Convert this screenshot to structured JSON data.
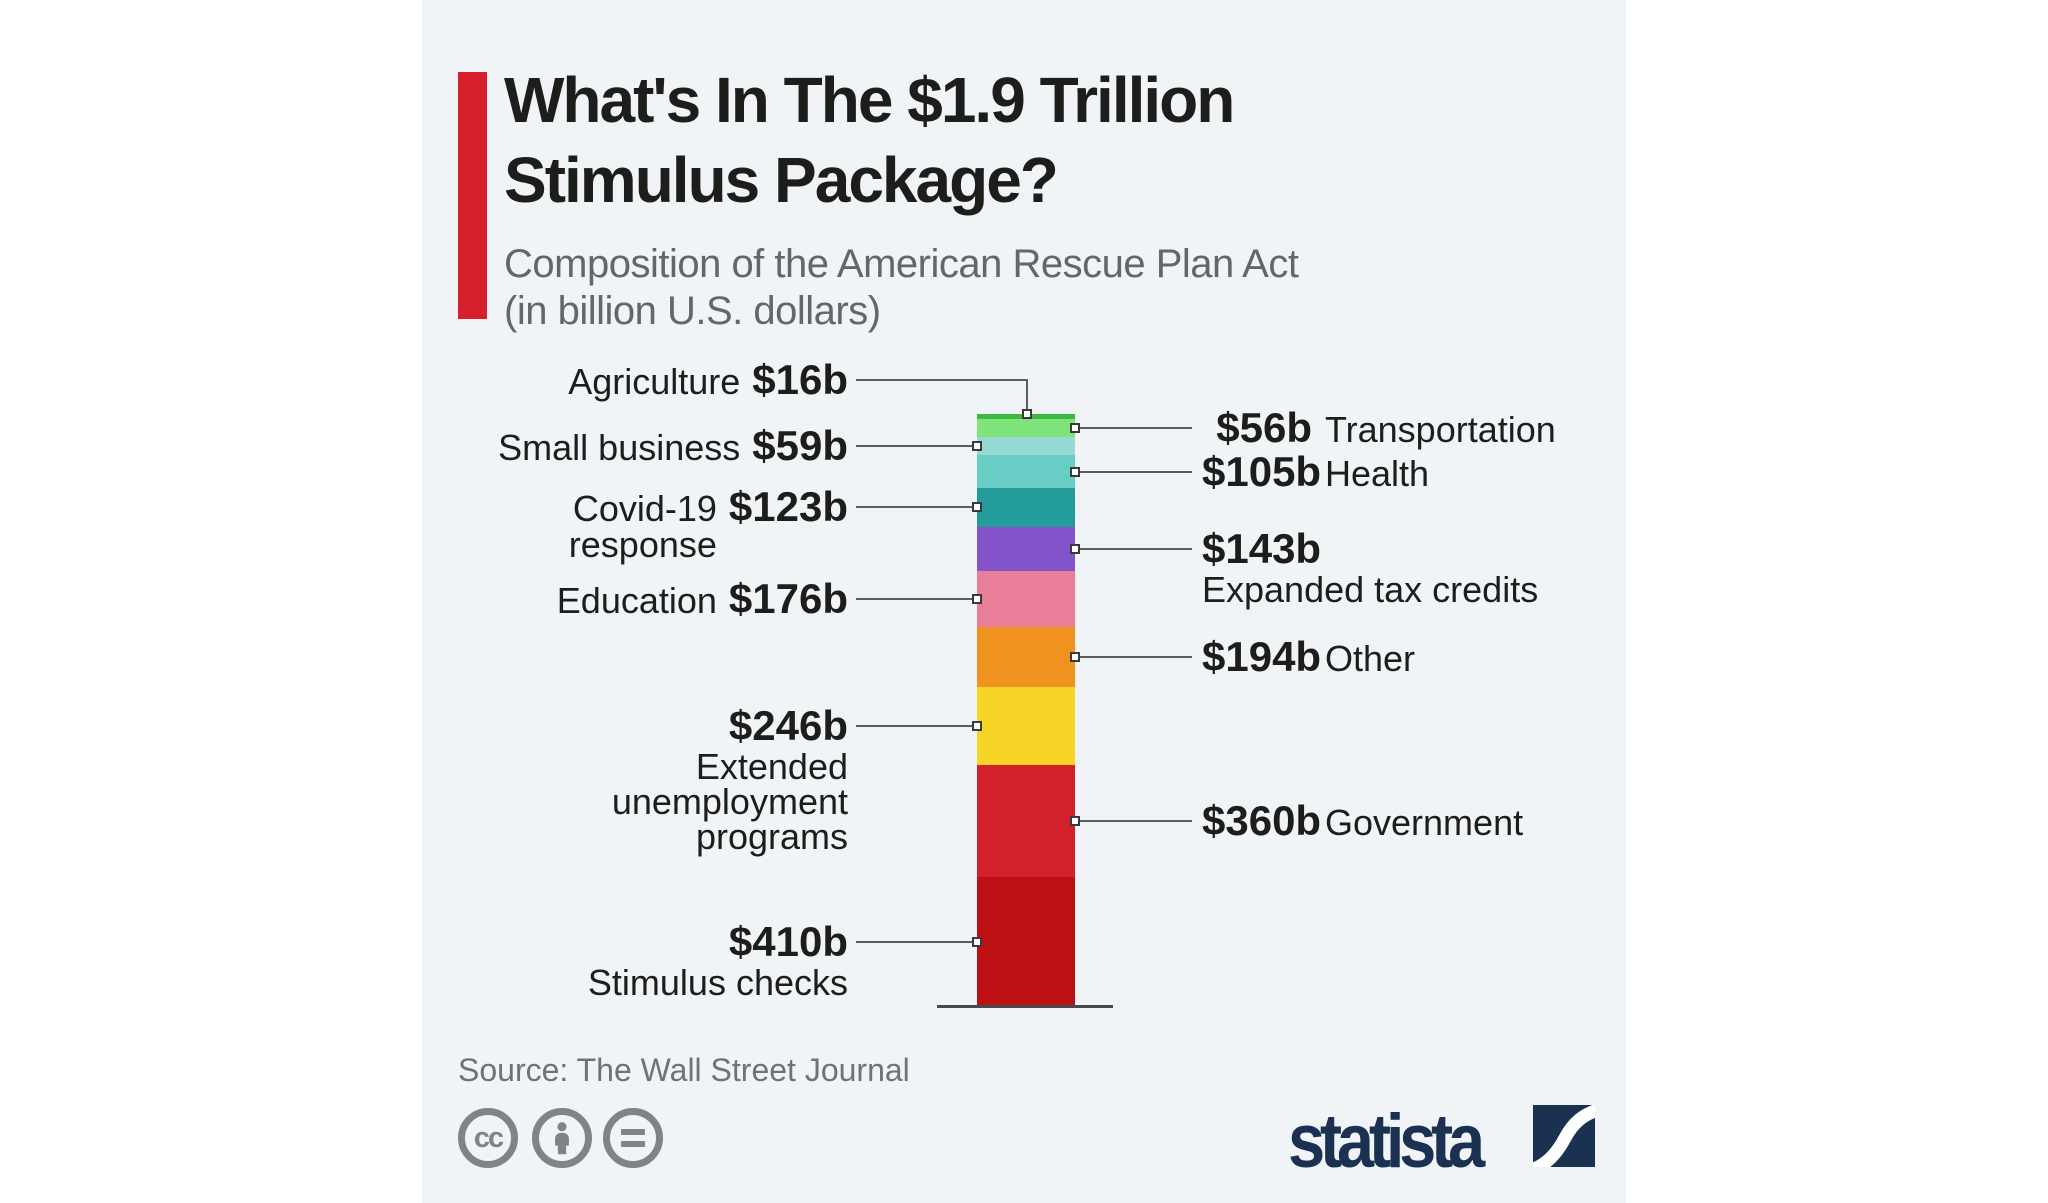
{
  "canvas": {
    "outer_bg": "#ffffff",
    "panel_bg": "#f0f4f7"
  },
  "header": {
    "accent_color": "#d6202c",
    "title_line1": "What's In The $1.9 Trillion",
    "title_line2": "Stimulus Package?",
    "subtitle_line1": "Composition of the American Rescue Plan Act",
    "subtitle_line2": "(in billion U.S. dollars)",
    "title_color": "#1d1d1b",
    "subtitle_color": "#63676a"
  },
  "chart_data": {
    "type": "bar",
    "variant": "single-stacked-column",
    "title": "What's In The $1.9 Trillion Stimulus Package?",
    "subtitle": "Composition of the American Rescue Plan Act (in billion U.S. dollars)",
    "unit": "billion U.S. dollars",
    "total": 1888,
    "legend_position": "callout-labels",
    "grid": false,
    "segments": [
      {
        "name": "Agriculture",
        "name_lines": [
          "Agriculture"
        ],
        "value": 16,
        "value_label": "$16b",
        "color": "#3db940",
        "side": "left",
        "layout": "inline",
        "elbow": true
      },
      {
        "name": "Transportation",
        "name_lines": [
          "Transportation"
        ],
        "value": 56,
        "value_label": "$56b",
        "color": "#80e47c",
        "side": "right",
        "layout": "inline"
      },
      {
        "name": "Small business",
        "name_lines": [
          "Small business"
        ],
        "value": 59,
        "value_label": "$59b",
        "color": "#96dad3",
        "side": "left",
        "layout": "inline"
      },
      {
        "name": "Health",
        "name_lines": [
          "Health"
        ],
        "value": 105,
        "value_label": "$105b",
        "color": "#68cdc5",
        "side": "right",
        "layout": "inline"
      },
      {
        "name": "Covid-19 response",
        "name_lines": [
          "Covid-19",
          "response"
        ],
        "value": 123,
        "value_label": "$123b",
        "color": "#239c9b",
        "side": "left",
        "layout": "inline"
      },
      {
        "name": "Expanded tax credits",
        "name_lines": [
          "Expanded tax credits"
        ],
        "value": 143,
        "value_label": "$143b",
        "color": "#8253c9",
        "side": "right",
        "layout": "value-top"
      },
      {
        "name": "Education",
        "name_lines": [
          "Education"
        ],
        "value": 176,
        "value_label": "$176b",
        "color": "#e87e97",
        "side": "left",
        "layout": "inline"
      },
      {
        "name": "Other",
        "name_lines": [
          "Other"
        ],
        "value": 194,
        "value_label": "$194b",
        "color": "#f0921e",
        "side": "right",
        "layout": "inline"
      },
      {
        "name": "Extended unemployment programs",
        "name_lines": [
          "Extended",
          "unemployment",
          "programs"
        ],
        "value": 246,
        "value_label": "$246b",
        "color": "#f6d527",
        "side": "left",
        "layout": "value-top"
      },
      {
        "name": "Government",
        "name_lines": [
          "Government"
        ],
        "value": 360,
        "value_label": "$360b",
        "color": "#d2212d",
        "side": "right",
        "layout": "inline"
      },
      {
        "name": "Stimulus checks",
        "name_lines": [
          "Stimulus checks"
        ],
        "value": 410,
        "value_label": "$410b",
        "color": "#bc1015",
        "side": "left",
        "layout": "value-top"
      }
    ]
  },
  "footer": {
    "source_text": "Source: The Wall Street Journal",
    "license_icons": [
      "cc-icon",
      "attribution-person-icon",
      "equals-icon"
    ],
    "icon_color": "#7f8486",
    "source_color": "#6f7375"
  },
  "brand": {
    "wordmark": "statista",
    "color": "#1a3151"
  }
}
